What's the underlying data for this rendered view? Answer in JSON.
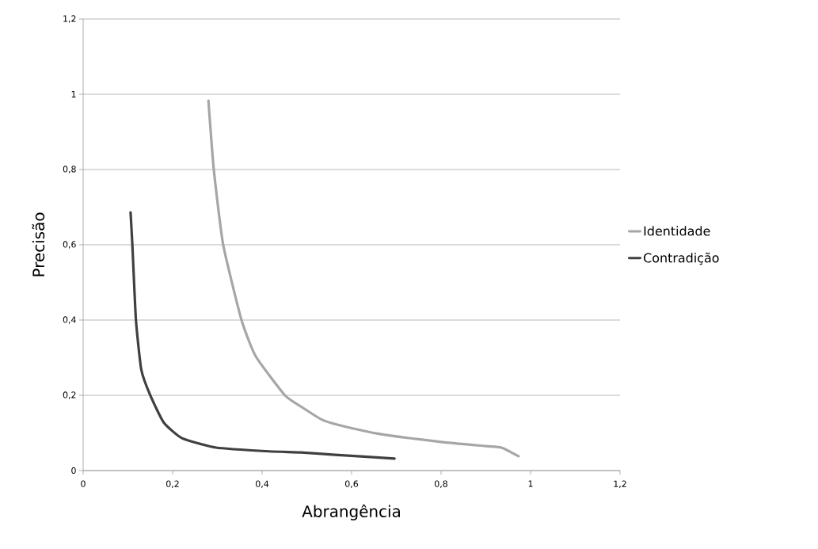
{
  "chart_data": {
    "type": "line",
    "xlabel": "Abrangência",
    "ylabel": "Precisão",
    "xlim": [
      0,
      1.2
    ],
    "ylim": [
      0,
      1.2
    ],
    "xticks": [
      0,
      {
        "value": 0.2,
        "label": "0,2"
      },
      {
        "value": 0.4,
        "label": "0,4"
      },
      {
        "value": 0.6,
        "label": "0,6"
      },
      {
        "value": 0.8,
        "label": "0,8"
      },
      1,
      {
        "value": 1.2,
        "label": "1,2"
      }
    ],
    "yticks": [
      0,
      {
        "value": 0.2,
        "label": "0,2"
      },
      {
        "value": 0.4,
        "label": "0,4"
      },
      {
        "value": 0.6,
        "label": "0,6"
      },
      {
        "value": 0.8,
        "label": "0,8"
      },
      1,
      {
        "value": 1.2,
        "label": "1,2"
      }
    ],
    "grid": "y",
    "legend": "right",
    "marker": "none",
    "line_style": "solid",
    "series": [
      {
        "name": "Identidade",
        "color": "#a6a6a6",
        "x": [
          0.28,
          0.292,
          0.313,
          0.354,
          0.386,
          0.451,
          0.487,
          0.534,
          0.575,
          0.664,
          0.8,
          0.9,
          0.935,
          0.973
        ],
        "values": [
          0.983,
          0.8,
          0.6,
          0.4,
          0.303,
          0.2,
          0.17,
          0.135,
          0.12,
          0.097,
          0.076,
          0.065,
          0.061,
          0.038
        ]
      },
      {
        "name": "Contradição",
        "color": "#404040",
        "x": [
          0.106,
          0.11,
          0.118,
          0.13,
          0.15,
          0.18,
          0.221,
          0.297,
          0.416,
          0.487,
          0.563,
          0.696
        ],
        "values": [
          0.686,
          0.6,
          0.4,
          0.268,
          0.2,
          0.128,
          0.086,
          0.061,
          0.051,
          0.048,
          0.042,
          0.032
        ]
      }
    ]
  }
}
